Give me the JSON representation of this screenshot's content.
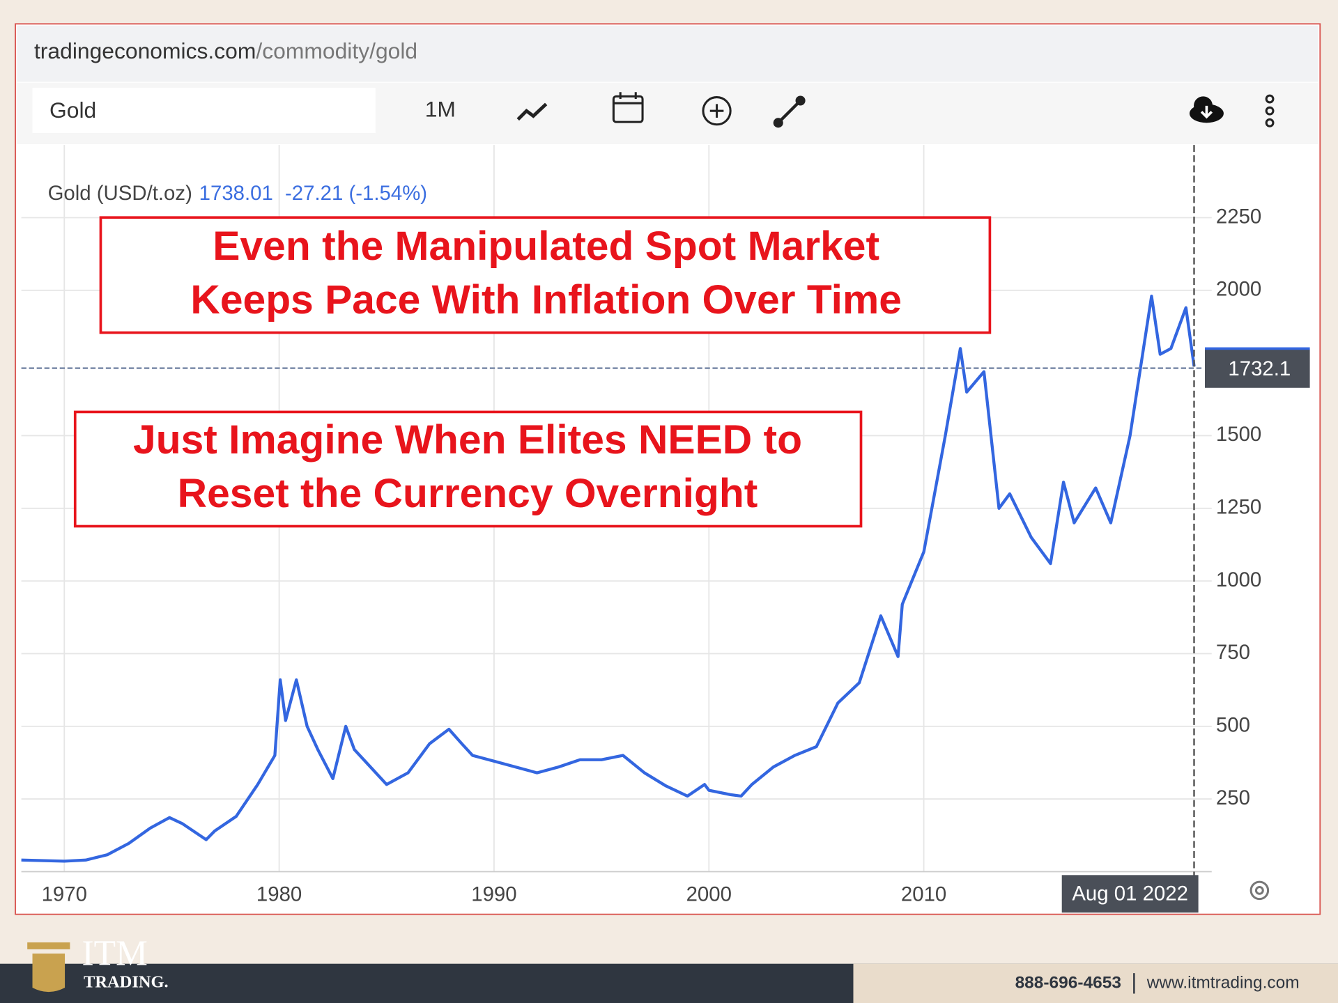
{
  "browser": {
    "domain": "tradingeconomics.com",
    "path": "/commodity/gold"
  },
  "toolbar": {
    "search": "Gold",
    "period": "1M"
  },
  "annotations": [
    {
      "lines": [
        "Even the Manipulated Spot Market",
        "Keeps Pace With Inflation Over Time"
      ]
    },
    {
      "lines": [
        "Just Imagine When Elites NEED to",
        "Reset the Currency Overnight"
      ]
    }
  ],
  "footer": {
    "brand": "ITM",
    "brand_sub": "TRADING.",
    "phone": "888-696-4653",
    "website": "www.itmtrading.com"
  },
  "chart_data": {
    "type": "line",
    "quote": {
      "price": 1738.01,
      "change": "-27.21 (-1.54%)"
    },
    "last_price": 1732.1,
    "cursor_label": "Aug 01 2022",
    "x": [
      1968,
      1970,
      1971,
      1972,
      1973,
      1974,
      1974.9,
      1975.5,
      1976.6,
      1977,
      1978,
      1979,
      1979.8,
      1980.05,
      1980.3,
      1980.8,
      1981.3,
      1981.8,
      1982.5,
      1983.1,
      1983.5,
      1984,
      1985,
      1986,
      1987,
      1987.9,
      1988.5,
      1989,
      1990,
      1991,
      1992,
      1993,
      1994,
      1995,
      1996,
      1997,
      1998,
      1999,
      1999.8,
      2000,
      2001,
      2001.5,
      2002,
      2003,
      2004,
      2005,
      2006,
      2007,
      2008,
      2008.8,
      2009,
      2010,
      2011,
      2011.7,
      2012,
      2012.8,
      2013.5,
      2014,
      2015,
      2015.9,
      2016.5,
      2017,
      2018,
      2018.7,
      2019,
      2019.6,
      2020.6,
      2021,
      2021.5,
      2022.2,
      2022.58
    ],
    "series": [
      {
        "name": "Gold (USD/t.oz)",
        "color": "#3366e0",
        "values": [
          40,
          36,
          40,
          58,
          97,
          150,
          186,
          165,
          110,
          140,
          190,
          300,
          400,
          660,
          520,
          660,
          500,
          420,
          320,
          500,
          420,
          380,
          300,
          340,
          440,
          490,
          440,
          400,
          380,
          360,
          340,
          360,
          385,
          385,
          400,
          340,
          295,
          260,
          300,
          280,
          265,
          260,
          300,
          360,
          400,
          430,
          580,
          650,
          880,
          740,
          920,
          1100,
          1500,
          1800,
          1650,
          1720,
          1250,
          1300,
          1150,
          1060,
          1340,
          1200,
          1320,
          1200,
          1300,
          1500,
          1980,
          1780,
          1800,
          1940,
          1738
        ]
      }
    ],
    "xlim": [
      1968,
      2023.4
    ],
    "xticks": [
      1970,
      1980,
      1990,
      2000,
      2010
    ],
    "ylim": [
      0,
      2500
    ],
    "yticks": [
      250,
      500,
      750,
      1000,
      1250,
      1500,
      2000,
      2250
    ],
    "grid": true
  }
}
